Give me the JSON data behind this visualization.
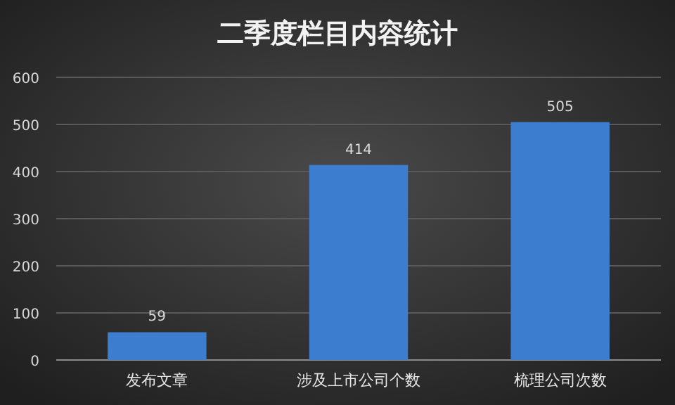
{
  "chart_data": {
    "type": "bar",
    "title": "二季度栏目内容统计",
    "categories": [
      "发布文章",
      "涉及上市公司个数",
      "梳理公司次数"
    ],
    "values": [
      59,
      414,
      505
    ],
    "color": "#3d7dd0",
    "ylim": [
      0,
      600
    ],
    "yticks": [
      0,
      100,
      200,
      300,
      400,
      500,
      600
    ],
    "grid": "y",
    "data_labels": true
  }
}
